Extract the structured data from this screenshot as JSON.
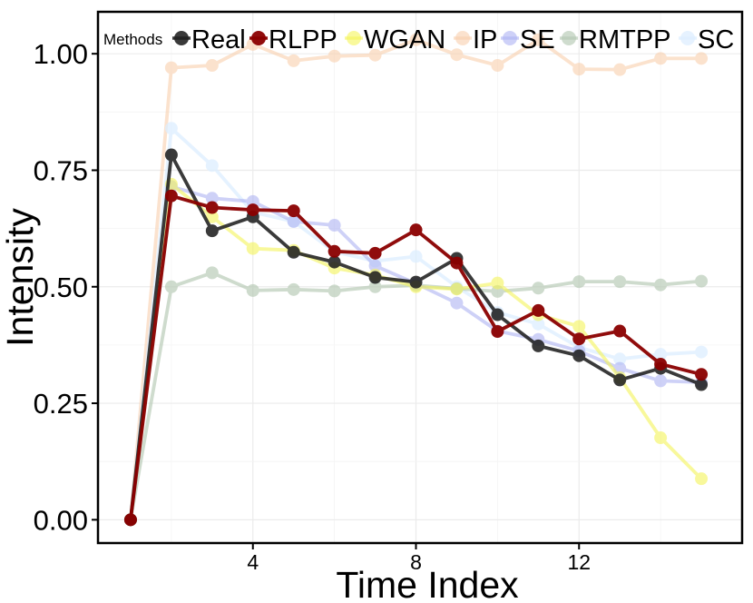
{
  "chart_data": {
    "type": "line",
    "xlabel": "Time Index",
    "ylabel": "Intensity",
    "xlim": [
      0.2,
      16
    ],
    "ylim": [
      -0.05,
      1.09
    ],
    "x_ticks": [
      4,
      8,
      12
    ],
    "x_tick_labels": [
      "4",
      "8",
      "12"
    ],
    "y_ticks": [
      0,
      0.25,
      0.5,
      0.75,
      1.0
    ],
    "y_tick_labels": [
      "0.00",
      "0.25",
      "0.50",
      "0.75",
      "1.00"
    ],
    "grid": true,
    "legend": {
      "title": "Methods",
      "placement": "top-inside",
      "entries": [
        "Real",
        "RLPP",
        "WGAN",
        "IP",
        "SE",
        "RMTPP",
        "SC"
      ]
    },
    "x": [
      1,
      2,
      3,
      4,
      5,
      6,
      7,
      8,
      9,
      10,
      11,
      12,
      13,
      14,
      15
    ],
    "series": [
      {
        "name": "IP",
        "color": "#f9cfad",
        "opacity": 0.6,
        "values": [
          0.0,
          0.97,
          0.975,
          1.02,
          0.985,
          0.995,
          0.997,
          1.03,
          0.998,
          0.975,
          1.03,
          0.967,
          0.966,
          0.99,
          0.99
        ]
      },
      {
        "name": "SC",
        "color": "#ddeeff",
        "opacity": 0.75,
        "values": [
          0.0,
          0.84,
          0.76,
          0.66,
          0.64,
          0.575,
          0.555,
          0.565,
          0.5,
          0.445,
          0.42,
          0.37,
          0.345,
          0.355,
          0.36
        ]
      },
      {
        "name": "RMTPP",
        "color": "#b5c9b3",
        "opacity": 0.65,
        "values": [
          0.0,
          0.5,
          0.53,
          0.492,
          0.494,
          0.491,
          0.5,
          0.503,
          0.496,
          0.49,
          0.497,
          0.511,
          0.511,
          0.504,
          0.512
        ]
      },
      {
        "name": "SE",
        "color": "#aeb3f3",
        "opacity": 0.6,
        "values": [
          0.0,
          0.715,
          0.69,
          0.683,
          0.64,
          0.632,
          0.545,
          0.507,
          0.465,
          0.405,
          0.387,
          0.362,
          0.325,
          0.298,
          0.295
        ]
      },
      {
        "name": "WGAN",
        "color": "#f5f55a",
        "opacity": 0.6,
        "values": [
          0.0,
          0.72,
          0.65,
          0.582,
          0.578,
          0.54,
          0.525,
          0.5,
          0.495,
          0.508,
          0.44,
          0.415,
          0.305,
          0.176,
          0.088
        ]
      },
      {
        "name": "Real",
        "color": "#1f1f1f",
        "opacity": 0.88,
        "values": [
          0.0,
          0.783,
          0.62,
          0.65,
          0.574,
          0.553,
          0.52,
          0.51,
          0.561,
          0.44,
          0.373,
          0.352,
          0.3,
          0.325,
          0.29
        ]
      },
      {
        "name": "RLPP",
        "color": "#8b0000",
        "opacity": 0.95,
        "values": [
          0.0,
          0.695,
          0.67,
          0.665,
          0.663,
          0.576,
          0.572,
          0.622,
          0.551,
          0.404,
          0.449,
          0.388,
          0.405,
          0.334,
          0.312
        ]
      }
    ]
  }
}
